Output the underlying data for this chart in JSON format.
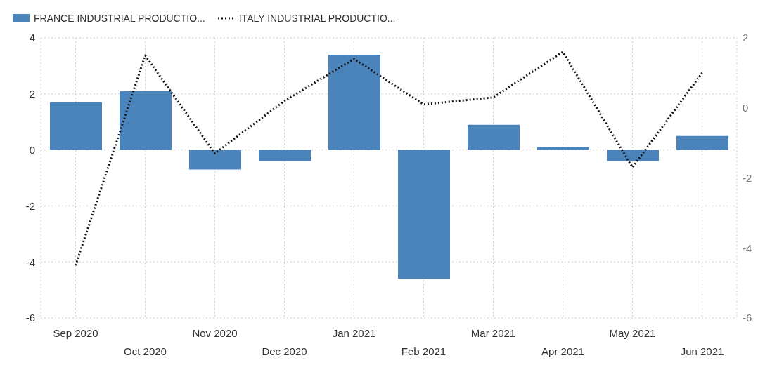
{
  "chart_data": {
    "type": "bar",
    "categories": [
      "Sep 2020",
      "Oct 2020",
      "Nov 2020",
      "Dec 2020",
      "Jan 2021",
      "Feb 2021",
      "Mar 2021",
      "Apr 2021",
      "May 2021",
      "Jun 2021"
    ],
    "series": [
      {
        "name": "FRANCE INDUSTRIAL PRODUCTIO...",
        "color": "#4a84bb",
        "values": [
          1.7,
          2.1,
          -0.7,
          -0.4,
          3.4,
          -4.6,
          0.9,
          0.1,
          -0.4,
          0.5
        ]
      },
      {
        "name": "ITALY INDUSTRIAL PRODUCTIO...",
        "type": "line",
        "axis": "y2",
        "color": "#111111",
        "line_style": "dotted",
        "marker": "none",
        "values": [
          -4.5,
          1.5,
          -1.3,
          0.2,
          1.4,
          0.1,
          0.3,
          1.6,
          -1.7,
          1.0
        ]
      }
    ],
    "ylim": [
      -6,
      4
    ],
    "yticks": [
      -6,
      -4,
      -2,
      0,
      2,
      4
    ],
    "y2lim": [
      -6,
      2
    ],
    "y2ticks": [
      -6,
      -4,
      -2,
      0,
      2
    ],
    "grid": true,
    "legend": "top left"
  }
}
